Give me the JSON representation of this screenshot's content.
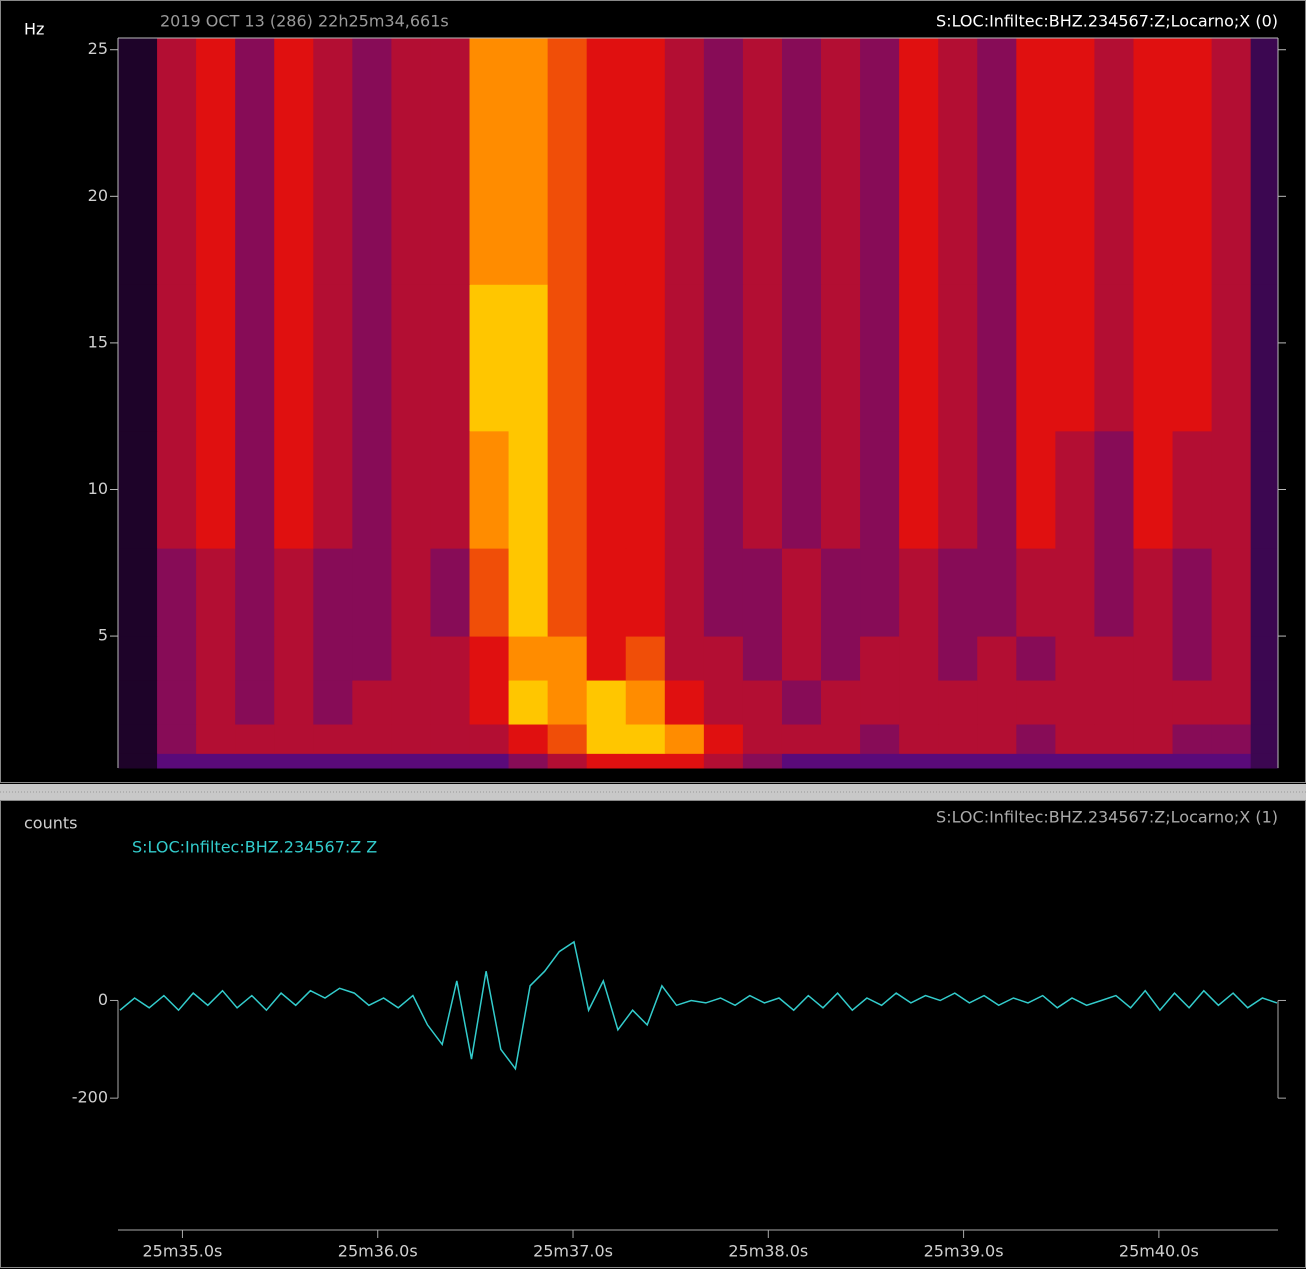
{
  "chart_data": [
    {
      "type": "heatmap",
      "title": "2019 OCT 13 (286)  22h25m34,661s",
      "annotation": "S:LOC:Infiltec:BHZ.234567:Z;Locarno;X (0)",
      "ylabel": "Hz",
      "xlim": [
        34.67,
        40.61
      ],
      "ylim": [
        0.5,
        25.4
      ],
      "yticks": [
        5,
        10,
        15,
        20,
        25
      ],
      "xbins": [
        34.67,
        34.87,
        35.07,
        35.27,
        35.47,
        35.67,
        35.87,
        36.07,
        36.27,
        36.47,
        36.67,
        36.87,
        37.07,
        37.27,
        37.47,
        37.67,
        37.87,
        38.07,
        38.27,
        38.47,
        38.67,
        38.87,
        39.07,
        39.27,
        39.47,
        39.67,
        39.87,
        40.07,
        40.27,
        40.47,
        40.61
      ],
      "ybins": [
        0.5,
        1,
        2,
        3.5,
        5,
        8,
        12,
        17,
        25.4
      ],
      "z": [
        [
          1,
          3,
          3,
          3,
          3,
          3,
          3,
          3,
          3,
          3,
          4,
          5,
          6,
          6,
          6,
          5,
          4,
          3,
          3,
          3,
          3,
          3,
          3,
          3,
          3,
          3,
          3,
          3,
          3,
          2
        ],
        [
          1,
          4,
          5,
          5,
          5,
          5,
          5,
          5,
          5,
          5,
          6,
          7,
          9,
          9,
          8,
          6,
          5,
          5,
          5,
          4,
          5,
          5,
          5,
          4,
          5,
          5,
          5,
          4,
          4,
          2
        ],
        [
          1,
          4,
          5,
          4,
          5,
          4,
          5,
          5,
          5,
          6,
          9,
          8,
          9,
          8,
          6,
          5,
          5,
          4,
          5,
          5,
          5,
          5,
          5,
          5,
          5,
          5,
          5,
          5,
          5,
          2
        ],
        [
          1,
          4,
          5,
          4,
          5,
          4,
          4,
          5,
          5,
          6,
          8,
          8,
          6,
          7,
          5,
          5,
          4,
          5,
          4,
          5,
          5,
          4,
          5,
          4,
          5,
          5,
          5,
          4,
          5,
          2
        ],
        [
          1,
          4,
          5,
          4,
          5,
          4,
          4,
          5,
          4,
          7,
          9,
          7,
          6,
          6,
          5,
          4,
          4,
          5,
          4,
          4,
          5,
          4,
          4,
          5,
          5,
          4,
          5,
          4,
          5,
          2
        ],
        [
          1,
          5,
          6,
          4,
          6,
          5,
          4,
          5,
          5,
          8,
          9,
          7,
          6,
          6,
          5,
          4,
          5,
          4,
          5,
          4,
          6,
          5,
          4,
          6,
          5,
          4,
          6,
          5,
          5,
          2
        ],
        [
          1,
          5,
          6,
          4,
          6,
          5,
          4,
          5,
          5,
          9,
          9,
          7,
          6,
          6,
          5,
          4,
          5,
          4,
          5,
          4,
          6,
          5,
          4,
          6,
          6,
          5,
          6,
          6,
          5,
          2
        ],
        [
          1,
          5,
          6,
          4,
          6,
          5,
          4,
          5,
          5,
          8,
          8,
          7,
          6,
          6,
          5,
          4,
          5,
          4,
          5,
          4,
          6,
          5,
          4,
          6,
          6,
          5,
          6,
          6,
          5,
          2
        ]
      ],
      "colorscale": [
        [
          0,
          "#000000"
        ],
        [
          3,
          "#5a0a7a"
        ],
        [
          6,
          "#e01010"
        ],
        [
          8,
          "#ff8c00"
        ],
        [
          10,
          "#ffff00"
        ]
      ]
    },
    {
      "type": "line",
      "annotation": "S:LOC:Infiltec:BHZ.234567:Z;Locarno;X (1)",
      "ylabel": "counts",
      "xlim": [
        34.67,
        40.61
      ],
      "ylim": [
        -470,
        390
      ],
      "yticks": [
        0,
        -200
      ],
      "xticks": [
        {
          "value": 35,
          "label": "25m35.0s"
        },
        {
          "value": 36,
          "label": "25m36.0s"
        },
        {
          "value": 37,
          "label": "25m37.0s"
        },
        {
          "value": 38,
          "label": "25m38.0s"
        },
        {
          "value": 39,
          "label": "25m39.0s"
        },
        {
          "value": 40,
          "label": "25m40.0s"
        }
      ],
      "x": [
        34.68,
        34.755,
        34.83,
        34.905,
        34.98,
        35.055,
        35.13,
        35.205,
        35.28,
        35.355,
        35.43,
        35.505,
        35.58,
        35.655,
        35.73,
        35.805,
        35.88,
        35.955,
        36.03,
        36.105,
        36.18,
        36.255,
        36.33,
        36.405,
        36.48,
        36.555,
        36.63,
        36.705,
        36.78,
        36.855,
        36.93,
        37.005,
        37.08,
        37.155,
        37.23,
        37.305,
        37.38,
        37.455,
        37.53,
        37.605,
        37.68,
        37.755,
        37.83,
        37.905,
        37.98,
        38.055,
        38.13,
        38.205,
        38.28,
        38.355,
        38.43,
        38.505,
        38.58,
        38.655,
        38.73,
        38.805,
        38.88,
        38.955,
        39.03,
        39.105,
        39.18,
        39.255,
        39.33,
        39.405,
        39.48,
        39.555,
        39.63,
        39.705,
        39.78,
        39.855,
        39.93,
        40.005,
        40.08,
        40.155,
        40.23,
        40.305,
        40.38,
        40.455,
        40.53,
        40.605
      ],
      "series": [
        {
          "name": "S:LOC:Infiltec:BHZ.234567:Z Z",
          "color": "#33cccc",
          "values": [
            -20,
            5,
            -15,
            10,
            -20,
            15,
            -10,
            20,
            -15,
            10,
            -20,
            15,
            -10,
            20,
            5,
            25,
            15,
            -10,
            5,
            -15,
            10,
            -50,
            -90,
            40,
            -120,
            60,
            -100,
            -140,
            30,
            60,
            100,
            120,
            -20,
            40,
            -60,
            -20,
            -50,
            30,
            -10,
            0,
            -5,
            5,
            -10,
            10,
            -5,
            5,
            -20,
            10,
            -15,
            15,
            -20,
            5,
            -10,
            15,
            -5,
            10,
            0,
            15,
            -5,
            10,
            -10,
            5,
            -5,
            10,
            -15,
            5,
            -10,
            0,
            10,
            -15,
            20,
            -20,
            15,
            -15,
            20,
            -10,
            15,
            -15,
            5,
            -5
          ]
        }
      ]
    }
  ]
}
